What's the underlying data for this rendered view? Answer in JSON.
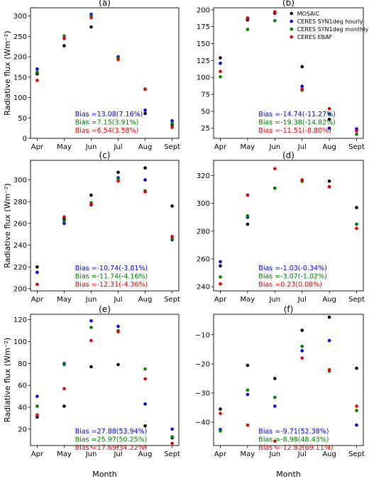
{
  "figure": {
    "ylabel": "Radiative flux (Wm⁻²)",
    "xlabel": "Month",
    "colors": {
      "MOSAiC": "#000000",
      "CERES SYN1deg hourly": "#0000ee",
      "CERES SYN1deg monthly": "#008000",
      "CERES EBAF": "#ee0000"
    }
  },
  "chart_data": [
    {
      "type": "scatter",
      "title": "(a)",
      "categories": [
        "Apr",
        "May",
        "Jun",
        "Jul",
        "Aug",
        "Sept"
      ],
      "ylim": [
        0,
        320
      ],
      "yticks": [
        0,
        50,
        100,
        150,
        200,
        250,
        300
      ],
      "series": [
        {
          "name": "MOSAiC",
          "values": [
            158,
            227,
            273,
            198,
            61,
            33
          ]
        },
        {
          "name": "CERES SYN1deg hourly",
          "values": [
            170,
            245,
            304,
            200,
            69,
            43
          ]
        },
        {
          "name": "CERES SYN1deg monthly",
          "values": [
            162,
            251,
            300,
            197,
            121,
            37
          ]
        },
        {
          "name": "CERES EBAF",
          "values": [
            142,
            245,
            296,
            193,
            120,
            27
          ]
        }
      ],
      "annotations": [
        "Bias =13.08(7.16%)",
        "Bias =7.15(3.91%)",
        "Bias =6.54(3.58%)"
      ]
    },
    {
      "type": "scatter",
      "title": "(b)",
      "categories": [
        "Apr",
        "May",
        "Jun",
        "Jul",
        "Aug",
        "Sept"
      ],
      "ylim": [
        10,
        203
      ],
      "yticks": [
        25,
        50,
        75,
        100,
        125,
        150,
        175,
        200
      ],
      "series": [
        {
          "name": "MOSAiC",
          "values": [
            129,
            185,
            195,
            116,
            38,
            22
          ]
        },
        {
          "name": "CERES SYN1deg hourly",
          "values": [
            121,
            187,
            197,
            87,
            25,
            24
          ]
        },
        {
          "name": "CERES SYN1deg monthly",
          "values": [
            101,
            171,
            184,
            81,
            46,
            16
          ]
        },
        {
          "name": "CERES EBAF",
          "values": [
            109,
            188,
            197,
            83,
            54,
            21
          ]
        }
      ],
      "annotations": [
        "Bias =-14.74(-11.27%)",
        "Bias =-19.38(-14.82%)",
        "Bias =-11.51(-8.80%)"
      ],
      "legend": {
        "placement": "top-right",
        "entries": [
          "MOSAiC",
          "CERES SYN1deg hourly",
          "CERES SYN1deg monthly",
          "CERES EBAF"
        ]
      }
    },
    {
      "type": "scatter",
      "title": "(c)",
      "categories": [
        "Apr",
        "May",
        "Jun",
        "Jul",
        "Aug",
        "Sept"
      ],
      "ylim": [
        198,
        318
      ],
      "yticks": [
        200,
        220,
        240,
        260,
        280,
        300
      ],
      "series": [
        {
          "name": "MOSAiC",
          "values": [
            220,
            264,
            286,
            307,
            311,
            276
          ]
        },
        {
          "name": "CERES SYN1deg hourly",
          "values": [
            215,
            260,
            277,
            302,
            300,
            245
          ]
        },
        {
          "name": "CERES SYN1deg monthly",
          "values": [
            204,
            262,
            279,
            301,
            290,
            246
          ]
        },
        {
          "name": "CERES EBAF",
          "values": [
            204,
            266,
            278,
            299,
            289,
            248
          ]
        }
      ],
      "annotations": [
        "Bias =-10.74(-3.81%)",
        "Bias =-11.74(-4.16%)",
        "Bias =-12.31(-4.36%)"
      ]
    },
    {
      "type": "scatter",
      "title": "(d)",
      "categories": [
        "Apr",
        "May",
        "Jun",
        "Jul",
        "Aug",
        "Sept"
      ],
      "ylim": [
        237,
        331
      ],
      "yticks": [
        240,
        260,
        280,
        300,
        320
      ],
      "series": [
        {
          "name": "MOSAiC",
          "values": [
            255,
            285,
            311,
            316,
            316,
            297
          ]
        },
        {
          "name": "CERES SYN1deg hourly",
          "values": [
            258,
            290,
            311,
            316,
            312,
            285
          ]
        },
        {
          "name": "CERES SYN1deg monthly",
          "values": [
            247,
            291,
            311,
            316,
            312,
            285
          ]
        },
        {
          "name": "CERES EBAF",
          "values": [
            242,
            306,
            325,
            317,
            312,
            282
          ]
        }
      ],
      "annotations": [
        "Bias =-1.03(-0.34%)",
        "Bias =-3.07(-1.02%)",
        "Bias =0.23(0.08%)"
      ]
    },
    {
      "type": "scatter",
      "title": "(e)",
      "categories": [
        "Apr",
        "May",
        "Jun",
        "Jul",
        "Aug",
        "Sept"
      ],
      "ylim": [
        5,
        125
      ],
      "yticks": [
        20,
        40,
        60,
        80,
        100,
        120
      ],
      "series": [
        {
          "name": "MOSAiC",
          "values": [
            31,
            41,
            77,
            79,
            23,
            12
          ]
        },
        {
          "name": "CERES SYN1deg hourly",
          "values": [
            50,
            80,
            119,
            114,
            43,
            20
          ]
        },
        {
          "name": "CERES SYN1deg monthly",
          "values": [
            41,
            79,
            113,
            110,
            75,
            13
          ]
        },
        {
          "name": "CERES EBAF",
          "values": [
            33,
            57,
            101,
            109,
            66,
            7
          ]
        }
      ],
      "annotations": [
        "Bias =27.88(53.94%)",
        "Bias =25.97(50.25%)",
        "Bias =17.69(34.22%)"
      ]
    },
    {
      "type": "scatter",
      "title": "(f)",
      "categories": [
        "Apr",
        "May",
        "Jun",
        "Jul",
        "Aug",
        "Sept"
      ],
      "ylim": [
        -48,
        -3
      ],
      "yticks": [
        -40,
        -30,
        -20,
        -10
      ],
      "series": [
        {
          "name": "MOSAiC",
          "values": [
            -35.5,
            -20.5,
            -25,
            -8.5,
            -4,
            -21.5
          ]
        },
        {
          "name": "CERES SYN1deg hourly",
          "values": [
            -42.5,
            -30.5,
            -34.5,
            -15.5,
            -12,
            -41
          ]
        },
        {
          "name": "CERES SYN1deg monthly",
          "values": [
            -43,
            -29,
            -31.5,
            -14,
            -22.5,
            -36
          ]
        },
        {
          "name": "CERES EBAF",
          "values": [
            -37,
            -41,
            -46.5,
            -18,
            -22,
            -34.5
          ]
        }
      ],
      "annotations": [
        "Bias =-9.71(52.38%)",
        "Bias =-8.98(48.43%)",
        "Bias =-12.81(69.11%)"
      ]
    }
  ]
}
